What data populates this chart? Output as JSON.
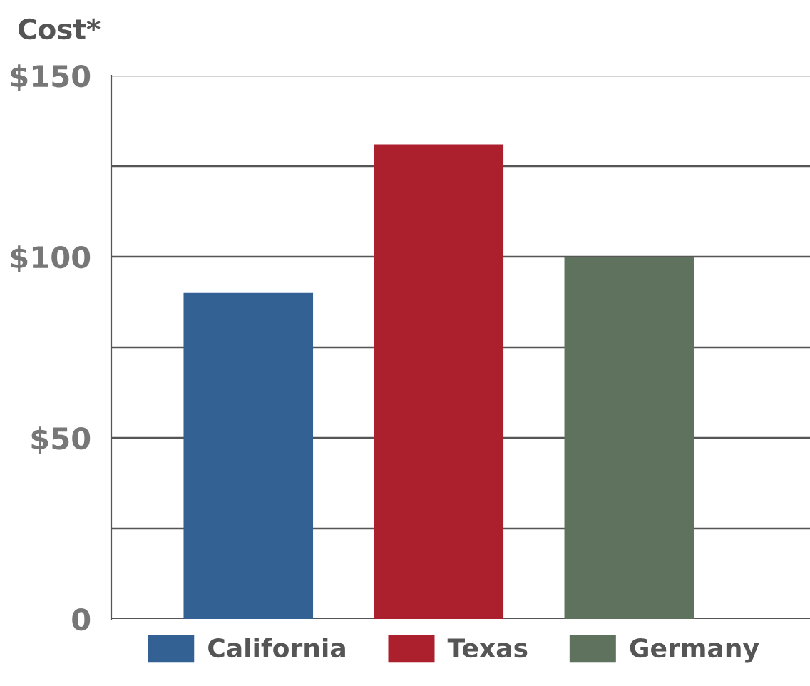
{
  "chart_data": {
    "type": "bar",
    "ylabel": "Cost*",
    "categories": [
      null,
      null,
      null
    ],
    "series": [
      {
        "name": "California",
        "color": "#336193",
        "values": [
          90,
          null,
          null
        ]
      },
      {
        "name": "Texas",
        "color": "#ac1f2d",
        "values": [
          null,
          131,
          null
        ]
      },
      {
        "name": "Germany",
        "color": "#5e725e",
        "values": [
          null,
          null,
          100
        ]
      }
    ],
    "ylim": [
      0,
      150
    ],
    "yticks": [
      {
        "value": 0,
        "label": "0"
      },
      {
        "value": 25,
        "label": null
      },
      {
        "value": 50,
        "label": "$50"
      },
      {
        "value": 75,
        "label": null
      },
      {
        "value": 100,
        "label": "$100"
      },
      {
        "value": 125,
        "label": null
      },
      {
        "value": 150,
        "label": "$150"
      }
    ],
    "grid": "y",
    "legend": "bottom",
    "tick_labels": "y"
  }
}
